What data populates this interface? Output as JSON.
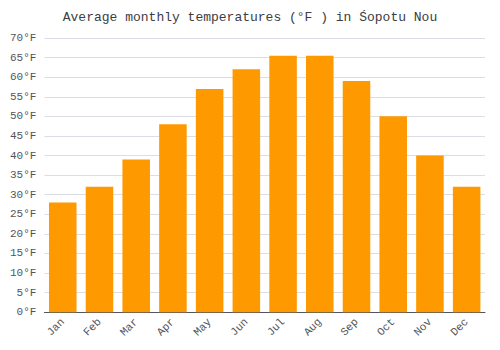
{
  "chart_data": {
    "type": "bar",
    "title": "Average monthly temperatures (°F ) in Śopotu Nou",
    "categories": [
      "Jan",
      "Feb",
      "Mar",
      "Apr",
      "May",
      "Jun",
      "Jul",
      "Aug",
      "Sep",
      "Oct",
      "Nov",
      "Dec"
    ],
    "values": [
      28,
      32,
      39,
      48,
      57,
      62,
      65.5,
      65.5,
      59,
      50,
      40,
      32
    ],
    "color": "#FF9900",
    "ylim": [
      0,
      70
    ],
    "yticks": [
      {
        "value": 0,
        "label": "0°F"
      },
      {
        "value": 5,
        "label": "5°F"
      },
      {
        "value": 10,
        "label": "10°F"
      },
      {
        "value": 15,
        "label": "15°F"
      },
      {
        "value": 20,
        "label": "20°F"
      },
      {
        "value": 25,
        "label": "25°F"
      },
      {
        "value": 30,
        "label": "30°F"
      },
      {
        "value": 35,
        "label": "35°F"
      },
      {
        "value": 40,
        "label": "40°F"
      },
      {
        "value": 45,
        "label": "45°F"
      },
      {
        "value": 50,
        "label": "50°F"
      },
      {
        "value": 55,
        "label": "55°F"
      },
      {
        "value": 60,
        "label": "60°F"
      },
      {
        "value": 65,
        "label": "65°F"
      },
      {
        "value": 70,
        "label": "70°F"
      }
    ],
    "grid": true
  }
}
